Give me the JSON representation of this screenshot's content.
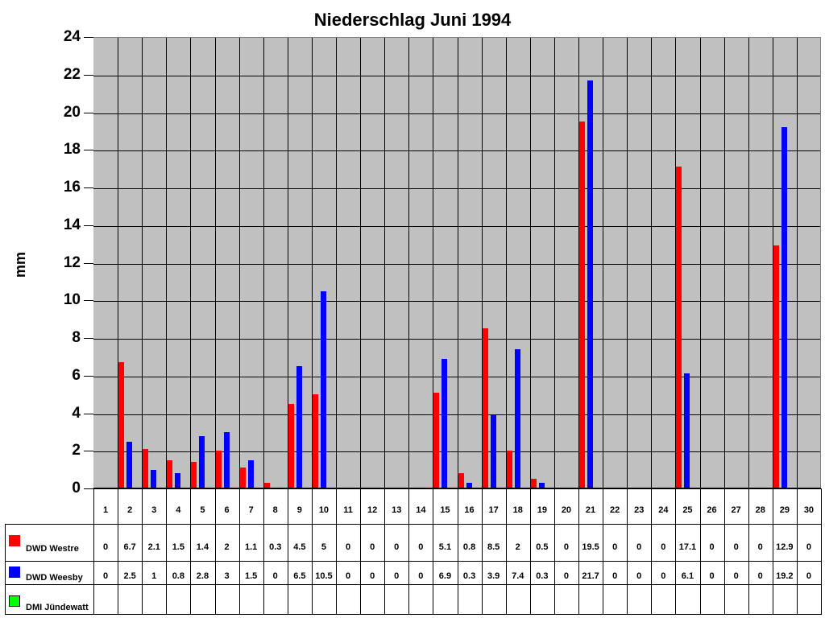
{
  "chart_data": {
    "type": "bar",
    "title": "Niederschlag Juni 1994",
    "xlabel": "",
    "ylabel": "mm",
    "ylim": [
      0,
      24
    ],
    "yticks": [
      0,
      2,
      4,
      6,
      8,
      10,
      12,
      14,
      16,
      18,
      20,
      22,
      24
    ],
    "grid": true,
    "legend_position": "data-table-left",
    "categories": [
      "1",
      "2",
      "3",
      "4",
      "5",
      "6",
      "7",
      "8",
      "9",
      "10",
      "11",
      "12",
      "13",
      "14",
      "15",
      "16",
      "17",
      "18",
      "19",
      "20",
      "21",
      "22",
      "23",
      "24",
      "25",
      "26",
      "27",
      "28",
      "29",
      "30"
    ],
    "series": [
      {
        "name": "DWD Westre",
        "color": "#ff0000",
        "values": [
          0,
          6.7,
          2.1,
          1.5,
          1.4,
          2,
          1.1,
          0.3,
          4.5,
          5,
          0,
          0,
          0,
          0,
          5.1,
          0.8,
          8.5,
          2,
          0.5,
          0,
          19.5,
          0,
          0,
          0,
          17.1,
          0,
          0,
          0,
          12.9,
          0
        ]
      },
      {
        "name": "DWD Weesby",
        "color": "#0000ff",
        "values": [
          0,
          2.5,
          1,
          0.8,
          2.8,
          3,
          1.5,
          0,
          6.5,
          10.5,
          0,
          0,
          0,
          0,
          6.9,
          0.3,
          3.9,
          7.4,
          0.3,
          0,
          21.7,
          0,
          0,
          0,
          6.1,
          0,
          0,
          0,
          19.2,
          0
        ]
      },
      {
        "name": "DMI Jündewatt",
        "color": "#00ff00",
        "values": []
      }
    ],
    "table_display": {
      "DWD Westre": [
        "0",
        "6.7",
        "2.1",
        "1.5",
        "1.4",
        "2",
        "1.1",
        "0.3",
        "4.5",
        "5",
        "0",
        "0",
        "0",
        "0",
        "5.1",
        "0.8",
        "8.5",
        "2",
        "0.5",
        "0",
        "19.5",
        "0",
        "0",
        "0",
        "17.1",
        "0",
        "0",
        "0",
        "12.9",
        "0"
      ],
      "DWD Weesby": [
        "0",
        "2.5",
        "1",
        "0.8",
        "2.8",
        "3",
        "1.5",
        "0",
        "6.5",
        "10.5",
        "0",
        "0",
        "0",
        "0",
        "6.9",
        "0.3",
        "3.9",
        "7.4",
        "0.3",
        "0",
        "21.7",
        "0",
        "0",
        "0",
        "6.1",
        "0",
        "0",
        "0",
        "19.2",
        "0"
      ],
      "DMI Jündewatt": [
        "",
        "",
        "",
        "",
        "",
        "",
        "",
        "",
        "",
        "",
        "",
        "",
        "",
        "",
        "",
        "",
        "",
        "",
        "",
        "",
        "",
        "",
        "",
        "",
        "",
        "",
        "",
        "",
        "",
        ""
      ]
    }
  },
  "colors": {
    "plot_bg": "#c0c0c0",
    "grid": "#000000"
  }
}
